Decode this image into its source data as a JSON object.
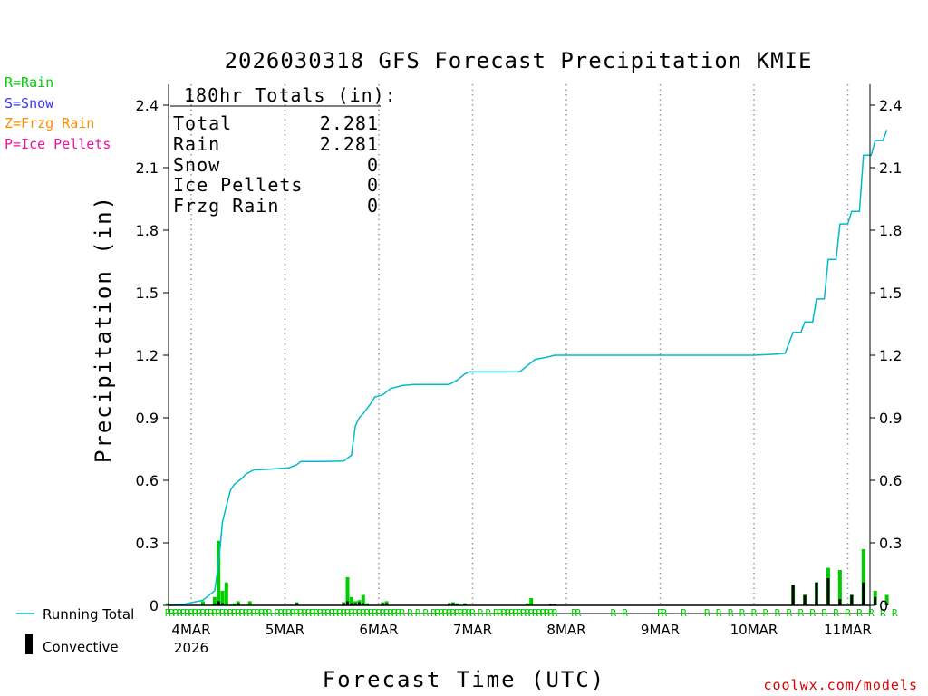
{
  "chart_data": {
    "type": "bar+line",
    "title": "2026030318 GFS Forecast Precipitation KMIE",
    "ylabel": "Precipitation (in)",
    "xlabel": "Forecast Time (UTC)",
    "ylim": [
      0,
      2.4
    ],
    "yticks": [
      "0",
      "0.3",
      "0.6",
      "0.9",
      "1.2",
      "1.5",
      "1.8",
      "2.1",
      "2.4"
    ],
    "xlim_hours": [
      0,
      186
    ],
    "date_ticks": [
      {
        "label": "4MAR",
        "hour": 0
      },
      {
        "label": "5MAR",
        "hour": 24
      },
      {
        "label": "6MAR",
        "hour": 48
      },
      {
        "label": "7MAR",
        "hour": 72
      },
      {
        "label": "8MAR",
        "hour": 96
      },
      {
        "label": "9MAR",
        "hour": 120
      },
      {
        "label": "10MAR",
        "hour": 144
      },
      {
        "label": "11MAR",
        "hour": 168
      }
    ],
    "year_label": "2026",
    "legend": {
      "rain": "R=Rain",
      "snow": "S=Snow",
      "frzg": "Z=Frzg Rain",
      "ice": "P=Ice Pellets",
      "running_total": "Running Total",
      "convective": "Convective"
    },
    "totals": {
      "header": "180hr Totals (in):",
      "rows": [
        {
          "label": "Total",
          "value": "2.281"
        },
        {
          "label": "Rain",
          "value": "2.281"
        },
        {
          "label": "Snow",
          "value": "0"
        },
        {
          "label": "Ice Pellets",
          "value": "0"
        },
        {
          "label": "Frzg Rain",
          "value": "0"
        }
      ]
    },
    "running_total": [
      [
        -6,
        0
      ],
      [
        -2,
        0.005
      ],
      [
        3,
        0.025
      ],
      [
        6,
        0.07
      ],
      [
        7,
        0.2
      ],
      [
        8,
        0.4
      ],
      [
        10,
        0.55
      ],
      [
        11,
        0.58
      ],
      [
        13,
        0.61
      ],
      [
        14,
        0.63
      ],
      [
        16,
        0.65
      ],
      [
        19,
        0.652
      ],
      [
        25,
        0.66
      ],
      [
        27,
        0.675
      ],
      [
        28,
        0.69
      ],
      [
        34,
        0.69
      ],
      [
        39,
        0.692
      ],
      [
        41,
        0.72
      ],
      [
        42,
        0.86
      ],
      [
        43,
        0.9
      ],
      [
        44,
        0.92
      ],
      [
        46,
        0.97
      ],
      [
        47,
        1.0
      ],
      [
        49,
        1.01
      ],
      [
        51,
        1.04
      ],
      [
        54,
        1.055
      ],
      [
        57,
        1.06
      ],
      [
        60,
        1.06
      ],
      [
        66,
        1.06
      ],
      [
        68,
        1.08
      ],
      [
        70,
        1.11
      ],
      [
        71,
        1.12
      ],
      [
        75,
        1.12
      ],
      [
        84,
        1.12
      ],
      [
        86,
        1.15
      ],
      [
        88,
        1.18
      ],
      [
        91,
        1.19
      ],
      [
        93,
        1.2
      ],
      [
        96,
        1.2
      ],
      [
        144,
        1.2
      ],
      [
        150,
        1.205
      ],
      [
        152,
        1.21
      ],
      [
        154,
        1.31
      ],
      [
        156,
        1.31
      ],
      [
        157,
        1.36
      ],
      [
        159,
        1.36
      ],
      [
        160,
        1.47
      ],
      [
        162,
        1.47
      ],
      [
        163,
        1.66
      ],
      [
        165,
        1.66
      ],
      [
        166,
        1.83
      ],
      [
        168,
        1.83
      ],
      [
        169,
        1.89
      ],
      [
        171,
        1.89
      ],
      [
        172,
        2.16
      ],
      [
        174,
        2.16
      ],
      [
        175,
        2.23
      ],
      [
        177,
        2.23
      ],
      [
        178,
        2.281
      ]
    ],
    "bars": [
      {
        "hour": -6,
        "total": 0.01,
        "conv": 0
      },
      {
        "hour": 3,
        "total": 0.02,
        "conv": 0
      },
      {
        "hour": 6,
        "total": 0.04,
        "conv": 0.005
      },
      {
        "hour": 7,
        "total": 0.31,
        "conv": 0.02
      },
      {
        "hour": 8,
        "total": 0.07,
        "conv": 0.01
      },
      {
        "hour": 9,
        "total": 0.11,
        "conv": 0
      },
      {
        "hour": 11,
        "total": 0.01,
        "conv": 0
      },
      {
        "hour": 12,
        "total": 0.02,
        "conv": 0.01
      },
      {
        "hour": 15,
        "total": 0.02,
        "conv": 0
      },
      {
        "hour": 27,
        "total": 0.015,
        "conv": 0.01
      },
      {
        "hour": 39,
        "total": 0.015,
        "conv": 0.01
      },
      {
        "hour": 40,
        "total": 0.135,
        "conv": 0.02
      },
      {
        "hour": 41,
        "total": 0.04,
        "conv": 0.01
      },
      {
        "hour": 42,
        "total": 0.02,
        "conv": 0.01
      },
      {
        "hour": 43,
        "total": 0.025,
        "conv": 0.015
      },
      {
        "hour": 44,
        "total": 0.05,
        "conv": 0.01
      },
      {
        "hour": 45,
        "total": 0.01,
        "conv": 0
      },
      {
        "hour": 49,
        "total": 0.015,
        "conv": 0.01
      },
      {
        "hour": 50,
        "total": 0.02,
        "conv": 0.01
      },
      {
        "hour": 66,
        "total": 0.01,
        "conv": 0.01
      },
      {
        "hour": 67,
        "total": 0.015,
        "conv": 0.01
      },
      {
        "hour": 68,
        "total": 0.01,
        "conv": 0.005
      },
      {
        "hour": 70,
        "total": 0.01,
        "conv": 0.005
      },
      {
        "hour": 86,
        "total": 0.01,
        "conv": 0
      },
      {
        "hour": 87,
        "total": 0.035,
        "conv": 0
      },
      {
        "hour": 92,
        "total": 0.005,
        "conv": 0.005
      },
      {
        "hour": 93,
        "total": 0.005,
        "conv": 0.005
      },
      {
        "hour": 154,
        "total": 0.1,
        "conv": 0.1
      },
      {
        "hour": 157,
        "total": 0.05,
        "conv": 0.05
      },
      {
        "hour": 160,
        "total": 0.11,
        "conv": 0.11
      },
      {
        "hour": 163,
        "total": 0.18,
        "conv": 0.13
      },
      {
        "hour": 166,
        "total": 0.17,
        "conv": 0.03
      },
      {
        "hour": 169,
        "total": 0.05,
        "conv": 0.05
      },
      {
        "hour": 172,
        "total": 0.27,
        "conv": 0.11
      },
      {
        "hour": 175,
        "total": 0.07,
        "conv": 0.04
      },
      {
        "hour": 178,
        "total": 0.05,
        "conv": 0.01
      }
    ],
    "ptype_marker": "R",
    "ptype_hours": [
      -6,
      -5,
      -4,
      -3,
      -2,
      -1,
      0,
      1,
      2,
      3,
      4,
      5,
      6,
      7,
      8,
      9,
      10,
      11,
      12,
      13,
      14,
      15,
      16,
      17,
      18,
      19,
      20,
      22,
      23,
      24,
      25,
      26,
      27,
      28,
      29,
      30,
      31,
      32,
      33,
      34,
      35,
      36,
      37,
      38,
      39,
      40,
      41,
      42,
      43,
      44,
      45,
      46,
      47,
      48,
      49,
      50,
      51,
      52,
      53,
      54,
      56,
      58,
      60,
      62,
      63,
      64,
      65,
      66,
      67,
      68,
      69,
      70,
      71,
      72,
      74,
      76,
      78,
      79,
      80,
      81,
      82,
      83,
      84,
      85,
      86,
      87,
      88,
      89,
      90,
      91,
      92,
      93,
      98,
      99,
      108,
      111,
      120,
      121,
      126,
      132,
      135,
      138,
      141,
      144,
      147,
      150,
      153,
      156,
      159,
      162,
      165,
      168,
      171,
      174,
      177,
      180
    ],
    "colors": {
      "rain": "#00cc00",
      "snow": "#3333ff",
      "frzg": "#ff8c00",
      "ice": "#ee1199",
      "line": "#00bbcc",
      "convective": "#000000",
      "credit": "#e00000"
    },
    "credit": "coolwx.com/models"
  }
}
